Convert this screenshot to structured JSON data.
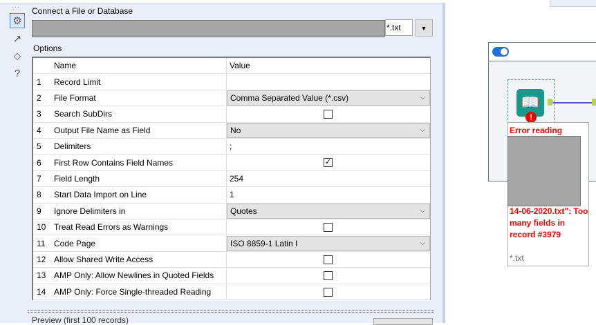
{
  "config": {
    "connect_label": "Connect a File or Database",
    "file_extension": "*.txt",
    "options_label": "Options",
    "columns": [
      "Name",
      "Value"
    ],
    "rows": [
      {
        "num": "1",
        "name": "Record Limit",
        "type": "text",
        "value": ""
      },
      {
        "num": "2",
        "name": "File Format",
        "type": "select",
        "value": "Comma Separated Value (*.csv)"
      },
      {
        "num": "3",
        "name": "Search SubDirs",
        "type": "checkbox",
        "checked": false
      },
      {
        "num": "4",
        "name": "Output File Name as Field",
        "type": "select",
        "value": "No"
      },
      {
        "num": "5",
        "name": "Delimiters",
        "type": "text",
        "value": ";"
      },
      {
        "num": "6",
        "name": "First Row Contains Field Names",
        "type": "checkbox",
        "checked": true
      },
      {
        "num": "7",
        "name": "Field Length",
        "type": "text",
        "value": "254"
      },
      {
        "num": "8",
        "name": "Start Data Import on Line",
        "type": "text",
        "value": "1"
      },
      {
        "num": "9",
        "name": "Ignore Delimiters in",
        "type": "select",
        "value": "Quotes"
      },
      {
        "num": "10",
        "name": "Treat Read Errors as Warnings",
        "type": "checkbox",
        "checked": false
      },
      {
        "num": "11",
        "name": "Code Page",
        "type": "select",
        "value": "ISO 8859-1 Latin I"
      },
      {
        "num": "12",
        "name": "Allow Shared Write Access",
        "type": "checkbox",
        "checked": false
      },
      {
        "num": "13",
        "name": "AMP Only: Allow Newlines in Quoted Fields",
        "type": "checkbox",
        "checked": false
      },
      {
        "num": "14",
        "name": "AMP Only: Force Single-threaded Reading",
        "type": "checkbox",
        "checked": false
      }
    ],
    "preview_label": "Preview (first 100 records)"
  },
  "canvas": {
    "error_line1": "Error reading",
    "error_rest": "14-06-2020.txt\": Too many fields in record #3979",
    "tool_annotation": "*.txt",
    "error_color": "#ff0000",
    "tool_color": "#14998a"
  }
}
